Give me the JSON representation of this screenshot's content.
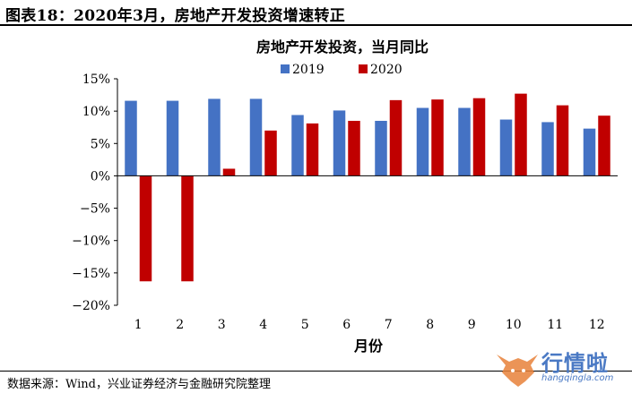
{
  "figure": {
    "title": "图表18：2020年3月，房地产开发投资增速转正",
    "source": "数据来源：Wind，兴业证券经济与金融研究院整理",
    "watermark": {
      "text": "行情啦",
      "url": "hangqingla.com"
    }
  },
  "chart_data": {
    "type": "bar",
    "title": "房地产开发投资，当月同比",
    "xlabel": "月份",
    "ylabel": "",
    "categories": [
      "1",
      "2",
      "3",
      "4",
      "5",
      "6",
      "7",
      "8",
      "9",
      "10",
      "11",
      "12"
    ],
    "series": [
      {
        "name": "2019",
        "color": "#4472c4",
        "values": [
          11.6,
          11.6,
          11.9,
          11.9,
          9.4,
          10.1,
          8.5,
          10.5,
          10.5,
          8.7,
          8.3,
          7.3
        ]
      },
      {
        "name": "2020",
        "color": "#c00000",
        "values": [
          -16.3,
          -16.3,
          1.1,
          7.0,
          8.1,
          8.5,
          11.7,
          11.8,
          12.0,
          12.7,
          10.9,
          9.3
        ]
      }
    ],
    "ylim": [
      -20,
      15
    ],
    "yticks": [
      15,
      10,
      5,
      0,
      -5,
      -10,
      -15,
      -20
    ],
    "ytick_labels": [
      "15%",
      "10%",
      "5%",
      "0%",
      "−5%",
      "−10%",
      "−15%",
      "−20%"
    ],
    "grid": false,
    "legend_position": "top-center"
  }
}
